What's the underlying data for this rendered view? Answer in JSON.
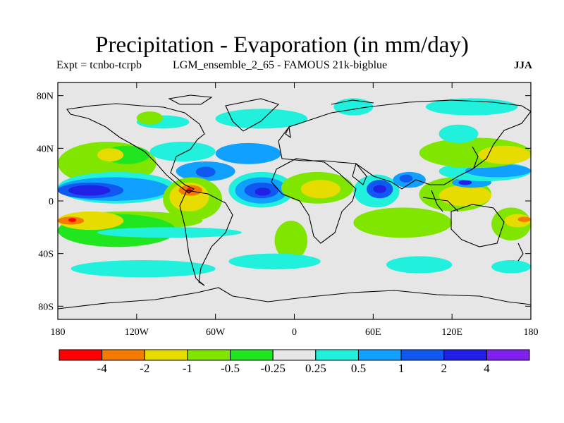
{
  "header": {
    "title": "Precipitation - Evaporation (in mm/day)",
    "experiment": "Expt = tcnbo-tcrpb",
    "run": "LGM_ensemble_2_65 - FAMOUS 21k-bigblue",
    "season": "JJA"
  },
  "map": {
    "projection": "cylindrical equidistant",
    "lon_range": [
      -180,
      180
    ],
    "lat_range": [
      -90,
      90
    ],
    "background_color": "#e6e6e6",
    "y_ticks": [
      {
        "lat": 80,
        "label": "80N"
      },
      {
        "lat": 40,
        "label": "40N"
      },
      {
        "lat": 0,
        "label": "0"
      },
      {
        "lat": -40,
        "label": "40S"
      },
      {
        "lat": -80,
        "label": "80S"
      }
    ],
    "x_ticks": [
      {
        "lon": -180,
        "label": "180"
      },
      {
        "lon": -120,
        "label": "120W"
      },
      {
        "lon": -60,
        "label": "60W"
      },
      {
        "lon": 0,
        "label": "0"
      },
      {
        "lon": 60,
        "label": "60E"
      },
      {
        "lon": 120,
        "label": "120E"
      },
      {
        "lon": 180,
        "label": "180"
      }
    ]
  },
  "colorbar": {
    "colors": [
      "#ff0000",
      "#f57a00",
      "#e6dc00",
      "#80e600",
      "#20e620",
      "#e6e6e6",
      "#20f0dc",
      "#10a0ff",
      "#1058f0",
      "#2020e6",
      "#8020f0"
    ],
    "labels": [
      "-4",
      "-2",
      "-1",
      "-0.5",
      "-0.25",
      "0.25",
      "0.5",
      "1",
      "2",
      "4"
    ]
  },
  "regions": [
    {
      "level": -0.5,
      "lon": [
        -180,
        -105
      ],
      "lat": [
        12,
        45
      ],
      "c": "#80e600"
    },
    {
      "level": -0.25,
      "lon": [
        -145,
        -110
      ],
      "lat": [
        28,
        42
      ],
      "c": "#20e620"
    },
    {
      "level": -1,
      "lon": [
        -150,
        -130
      ],
      "lat": [
        30,
        40
      ],
      "c": "#e6dc00"
    },
    {
      "level": 0.5,
      "lon": [
        -180,
        -90
      ],
      "lat": [
        -2,
        22
      ],
      "c": "#20f0dc"
    },
    {
      "level": 1,
      "lon": [
        -180,
        -95
      ],
      "lat": [
        0,
        18
      ],
      "c": "#10a0ff"
    },
    {
      "level": 2,
      "lon": [
        -180,
        -130
      ],
      "lat": [
        2,
        14
      ],
      "c": "#1058f0"
    },
    {
      "level": 4,
      "lon": [
        -172,
        -140
      ],
      "lat": [
        4,
        12
      ],
      "c": "#2020e6"
    },
    {
      "level": 1,
      "lon": [
        -90,
        -45
      ],
      "lat": [
        15,
        30
      ],
      "c": "#10a0ff"
    },
    {
      "level": 2,
      "lon": [
        -75,
        -60
      ],
      "lat": [
        18,
        26
      ],
      "c": "#1058f0"
    },
    {
      "level": 0.5,
      "lon": [
        -110,
        -60
      ],
      "lat": [
        30,
        45
      ],
      "c": "#20f0dc"
    },
    {
      "level": 1,
      "lon": [
        -60,
        -10
      ],
      "lat": [
        28,
        44
      ],
      "c": "#10a0ff"
    },
    {
      "level": 0.5,
      "lon": [
        -120,
        -80
      ],
      "lat": [
        55,
        65
      ],
      "c": "#20f0dc"
    },
    {
      "level": 0.5,
      "lon": [
        -60,
        10
      ],
      "lat": [
        55,
        70
      ],
      "c": "#20f0dc"
    },
    {
      "level": -0.5,
      "lon": [
        -120,
        -100
      ],
      "lat": [
        58,
        68
      ],
      "c": "#80e600"
    },
    {
      "level": -0.5,
      "lon": [
        -100,
        -55
      ],
      "lat": [
        -15,
        18
      ],
      "c": "#80e600"
    },
    {
      "level": -1,
      "lon": [
        -95,
        -65
      ],
      "lat": [
        -8,
        14
      ],
      "c": "#e6dc00"
    },
    {
      "level": -2,
      "lon": [
        -88,
        -70
      ],
      "lat": [
        4,
        12
      ],
      "c": "#f57a00"
    },
    {
      "level": -4,
      "lon": [
        -82,
        -78
      ],
      "lat": [
        6,
        10
      ],
      "c": "#ff0000"
    },
    {
      "level": 0.5,
      "lon": [
        -50,
        0
      ],
      "lat": [
        -5,
        22
      ],
      "c": "#20f0dc"
    },
    {
      "level": 1,
      "lon": [
        -45,
        -5
      ],
      "lat": [
        -2,
        18
      ],
      "c": "#10a0ff"
    },
    {
      "level": 2,
      "lon": [
        -38,
        -12
      ],
      "lat": [
        2,
        14
      ],
      "c": "#1058f0"
    },
    {
      "level": 4,
      "lon": [
        -30,
        -18
      ],
      "lat": [
        4,
        10
      ],
      "c": "#2020e6"
    },
    {
      "level": -0.5,
      "lon": [
        -10,
        45
      ],
      "lat": [
        -2,
        22
      ],
      "c": "#80e600"
    },
    {
      "level": -1,
      "lon": [
        5,
        35
      ],
      "lat": [
        2,
        16
      ],
      "c": "#e6dc00"
    },
    {
      "level": -0.5,
      "lon": [
        -15,
        10
      ],
      "lat": [
        -45,
        -15
      ],
      "c": "#80e600"
    },
    {
      "level": 0.5,
      "lon": [
        45,
        80
      ],
      "lat": [
        -5,
        20
      ],
      "c": "#20f0dc"
    },
    {
      "level": 2,
      "lon": [
        55,
        75
      ],
      "lat": [
        2,
        16
      ],
      "c": "#1058f0"
    },
    {
      "level": 4,
      "lon": [
        60,
        70
      ],
      "lat": [
        6,
        12
      ],
      "c": "#2020e6"
    },
    {
      "level": 1,
      "lon": [
        75,
        100
      ],
      "lat": [
        10,
        22
      ],
      "c": "#10a0ff"
    },
    {
      "level": 2,
      "lon": [
        80,
        90
      ],
      "lat": [
        14,
        20
      ],
      "c": "#1058f0"
    },
    {
      "level": -0.5,
      "lon": [
        45,
        120
      ],
      "lat": [
        -28,
        -5
      ],
      "c": "#80e600"
    },
    {
      "level": -0.5,
      "lon": [
        95,
        150
      ],
      "lat": [
        -8,
        18
      ],
      "c": "#80e600"
    },
    {
      "level": -1,
      "lon": [
        110,
        150
      ],
      "lat": [
        -4,
        12
      ],
      "c": "#e6dc00"
    },
    {
      "level": 1,
      "lon": [
        120,
        150
      ],
      "lat": [
        10,
        18
      ],
      "c": "#10a0ff"
    },
    {
      "level": 4,
      "lon": [
        125,
        135
      ],
      "lat": [
        12,
        16
      ],
      "c": "#2020e6"
    },
    {
      "level": 0.5,
      "lon": [
        110,
        180
      ],
      "lat": [
        15,
        30
      ],
      "c": "#20f0dc"
    },
    {
      "level": 1,
      "lon": [
        130,
        180
      ],
      "lat": [
        18,
        28
      ],
      "c": "#10a0ff"
    },
    {
      "level": -0.5,
      "lon": [
        95,
        180
      ],
      "lat": [
        25,
        48
      ],
      "c": "#80e600"
    },
    {
      "level": -1,
      "lon": [
        140,
        180
      ],
      "lat": [
        28,
        42
      ],
      "c": "#e6dc00"
    },
    {
      "level": 0.5,
      "lon": [
        110,
        140
      ],
      "lat": [
        44,
        58
      ],
      "c": "#20f0dc"
    },
    {
      "level": 0.5,
      "lon": [
        30,
        60
      ],
      "lat": [
        65,
        78
      ],
      "c": "#20f0dc"
    },
    {
      "level": 0.5,
      "lon": [
        100,
        170
      ],
      "lat": [
        65,
        78
      ],
      "c": "#20f0dc"
    },
    {
      "level": -0.5,
      "lon": [
        -180,
        -70
      ],
      "lat": [
        -22,
        -8
      ],
      "c": "#80e600"
    },
    {
      "level": -0.25,
      "lon": [
        -180,
        -90
      ],
      "lat": [
        -35,
        -10
      ],
      "c": "#20e620"
    },
    {
      "level": -1,
      "lon": [
        -180,
        -130
      ],
      "lat": [
        -22,
        -8
      ],
      "c": "#e6dc00"
    },
    {
      "level": -2,
      "lon": [
        -180,
        -160
      ],
      "lat": [
        -18,
        -12
      ],
      "c": "#f57a00"
    },
    {
      "level": -4,
      "lon": [
        -172,
        -166
      ],
      "lat": [
        -16,
        -13
      ],
      "c": "#ff0000"
    },
    {
      "level": 0.5,
      "lon": [
        -150,
        -40
      ],
      "lat": [
        -28,
        -20
      ],
      "c": "#20f0dc"
    },
    {
      "level": 0.5,
      "lon": [
        -170,
        -60
      ],
      "lat": [
        -58,
        -45
      ],
      "c": "#20f0dc"
    },
    {
      "level": 0.5,
      "lon": [
        -50,
        20
      ],
      "lat": [
        -52,
        -40
      ],
      "c": "#20f0dc"
    },
    {
      "level": 0.5,
      "lon": [
        70,
        120
      ],
      "lat": [
        -55,
        -42
      ],
      "c": "#20f0dc"
    },
    {
      "level": 0.5,
      "lon": [
        150,
        180
      ],
      "lat": [
        -55,
        -45
      ],
      "c": "#20f0dc"
    },
    {
      "level": -0.5,
      "lon": [
        150,
        180
      ],
      "lat": [
        -30,
        -5
      ],
      "c": "#80e600"
    },
    {
      "level": -1,
      "lon": [
        160,
        180
      ],
      "lat": [
        -20,
        -10
      ],
      "c": "#e6dc00"
    },
    {
      "level": -2,
      "lon": [
        170,
        180
      ],
      "lat": [
        -16,
        -12
      ],
      "c": "#f57a00"
    }
  ]
}
